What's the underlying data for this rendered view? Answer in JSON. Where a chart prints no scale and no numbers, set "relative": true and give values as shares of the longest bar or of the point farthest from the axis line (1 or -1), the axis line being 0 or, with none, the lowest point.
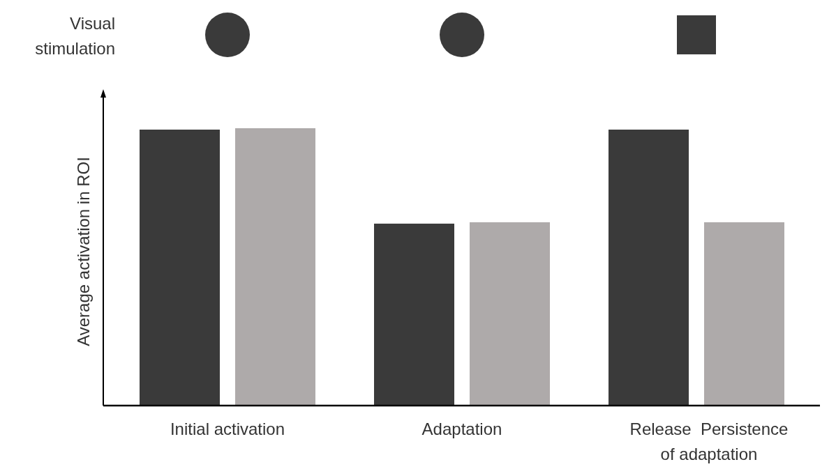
{
  "chart_data": {
    "type": "bar",
    "relative": true,
    "ylabel": "Average activation in ROI",
    "annotations": [
      "Visual\nstimulation"
    ],
    "categories": [
      "Initial activation",
      "Adaptation",
      "Release  Persistence\nof adaptation"
    ],
    "series": [
      {
        "color": "#3a3a3a",
        "values": [
          0.995,
          0.656,
          0.995
        ]
      },
      {
        "color": "#aeaaaa",
        "values": [
          1,
          0.661,
          0.661
        ]
      }
    ],
    "grid": false
  }
}
